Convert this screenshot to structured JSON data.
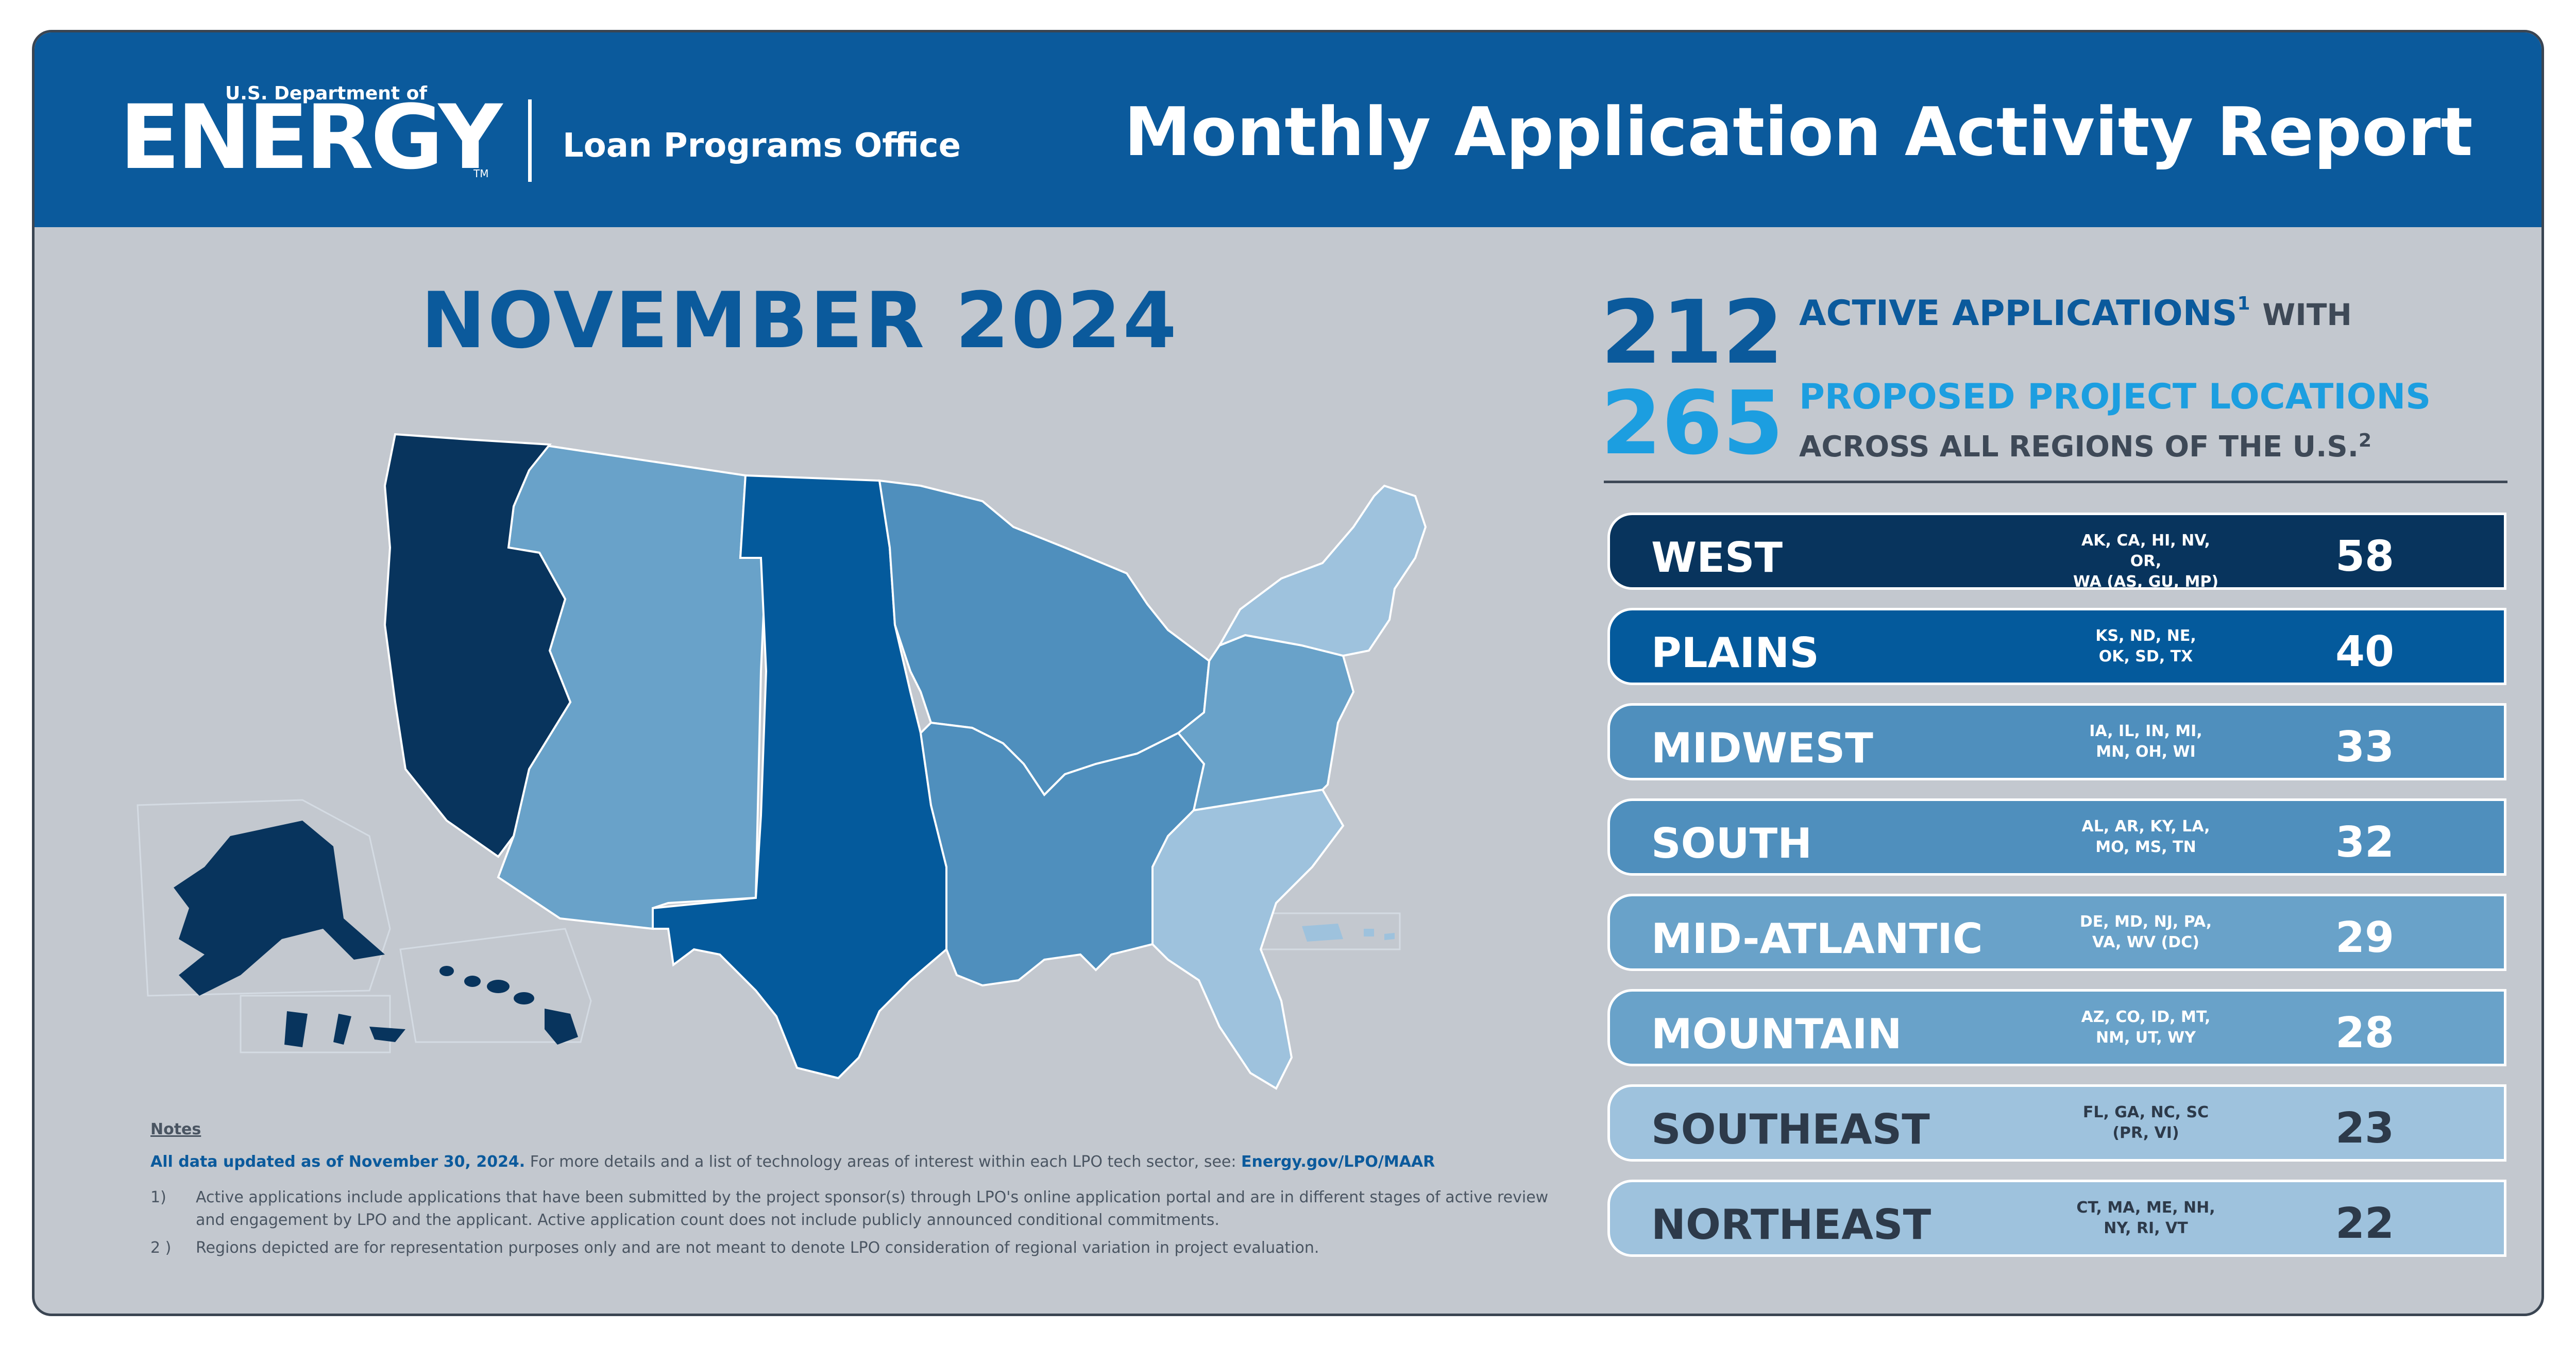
{
  "header": {
    "logo_small": "U.S. Department of",
    "logo_big": "ENERGY",
    "logo_tm": "TM",
    "office": "Loan Programs Office",
    "title": "Monthly Application Activity Report"
  },
  "month_title": "NOVEMBER 2024",
  "summary": {
    "active_count": "212",
    "active_label": "ACTIVE APPLICATIONS",
    "active_sup": "1",
    "active_suffix": "WITH",
    "locations_count": "265",
    "locations_label": "PROPOSED PROJECT LOCATIONS",
    "locations_suffix": "ACROSS ALL REGIONS OF THE U.S.",
    "locations_sup": "2"
  },
  "regions": [
    {
      "name": "WEST",
      "states_line1": "AK, CA, HI, NV, OR,",
      "states_line2": "WA (AS, GU, MP)",
      "count": "58",
      "color": "#08345d"
    },
    {
      "name": "PLAINS",
      "states_line1": "KS, ND, NE,",
      "states_line2": "OK, SD, TX",
      "count": "40",
      "color": "#045a9c"
    },
    {
      "name": "MIDWEST",
      "states_line1": "IA, IL, IN, MI,",
      "states_line2": "MN, OH, WI",
      "count": "33",
      "color": "#4f8fbd"
    },
    {
      "name": "SOUTH",
      "states_line1": "AL, AR, KY, LA,",
      "states_line2": "MO, MS, TN",
      "count": "32",
      "color": "#4f8fbd"
    },
    {
      "name": "MID-ATLANTIC",
      "states_line1": "DE, MD, NJ, PA,",
      "states_line2": "VA, WV (DC)",
      "count": "29",
      "color": "#69a2c9"
    },
    {
      "name": "MOUNTAIN",
      "states_line1": "AZ, CO, ID, MT,",
      "states_line2": "NM, UT, WY",
      "count": "28",
      "color": "#69a2c9"
    },
    {
      "name": "SOUTHEAST",
      "states_line1": "FL, GA, NC, SC",
      "states_line2": "(PR, VI)",
      "count": "23",
      "color": "#9ec2dd"
    },
    {
      "name": "NORTHEAST",
      "states_line1": "CT, MA, ME, NH,",
      "states_line2": "NY, RI, VT",
      "count": "22",
      "color": "#9ec2dd"
    }
  ],
  "notes": {
    "heading": "Notes",
    "updated_bold": "All data updated as of November 30, 2024.",
    "updated_text": " For more details and a list of technology areas of interest within each LPO tech sector, see: ",
    "updated_link": "Energy.gov/LPO/MAAR",
    "items": [
      {
        "num": "1)",
        "text": "Active applications include applications that have been submitted by the project sponsor(s) through LPO's online application portal and are in different stages of active review and engagement by LPO and the applicant. Active application count does not include publicly announced conditional commitments."
      },
      {
        "num": "2 )",
        "text": "Regions depicted are for representation purposes only and are not meant to denote LPO consideration of regional variation in project evaluation."
      }
    ]
  },
  "map": {
    "region_colors": {
      "west": "#08345d",
      "plains": "#045a9c",
      "midwest": "#4f8fbd",
      "south": "#4f8fbd",
      "mid_atlantic": "#69a2c9",
      "mountain": "#69a2c9",
      "southeast": "#9ec2dd",
      "northeast": "#9ec2dd"
    }
  }
}
